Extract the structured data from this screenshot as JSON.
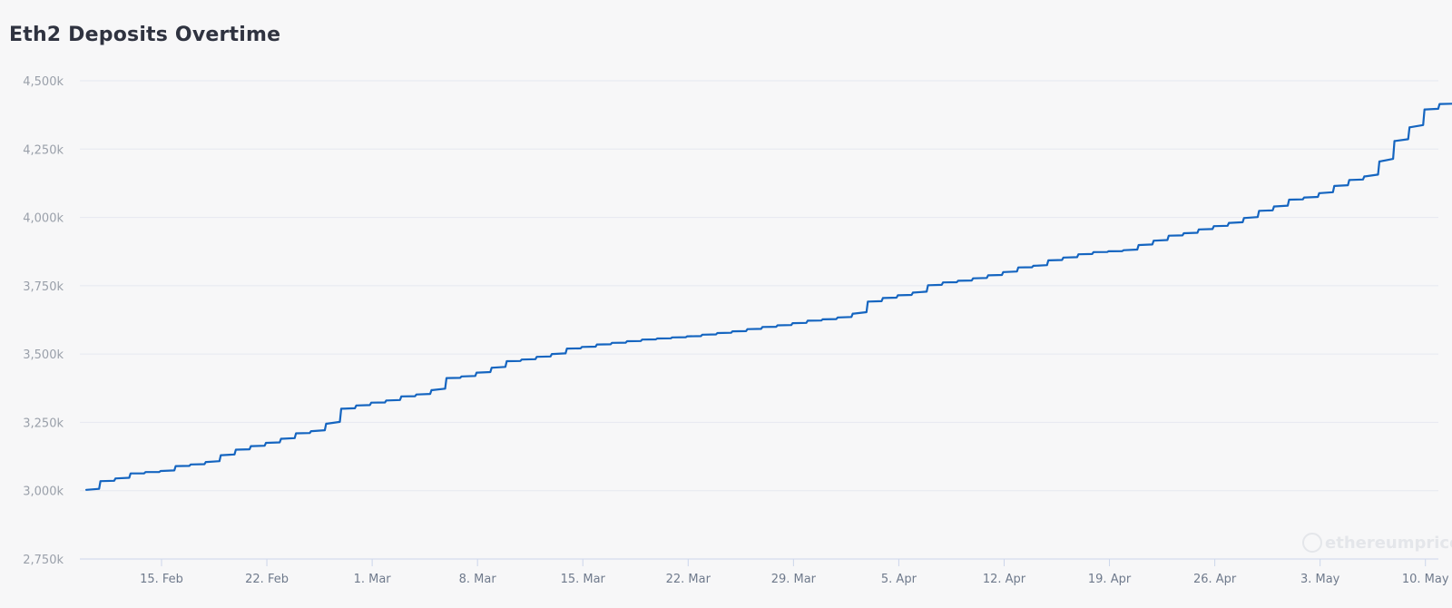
{
  "chart_data": {
    "type": "line",
    "title": "Eth2 Deposits Overtime",
    "xlabel": "",
    "ylabel": "",
    "ylim": [
      2750,
      4500
    ],
    "grid": true,
    "legend": "none",
    "watermark": "ethereumprice",
    "colors": {
      "line": "#1565c0",
      "grid": "#e6e8f0",
      "axis": "#ccd6eb",
      "background": "#f7f7f8"
    },
    "y_ticks": [
      {
        "value": 2750,
        "label": "2,750k"
      },
      {
        "value": 3000,
        "label": "3,000k"
      },
      {
        "value": 3250,
        "label": "3,250k"
      },
      {
        "value": 3500,
        "label": "3,500k"
      },
      {
        "value": 3750,
        "label": "3,750k"
      },
      {
        "value": 4000,
        "label": "4,000k"
      },
      {
        "value": 4250,
        "label": "4,250k"
      },
      {
        "value": 4500,
        "label": "4,500k"
      }
    ],
    "x_ticks": [
      {
        "date": "2021-02-15",
        "label": "15. Feb"
      },
      {
        "date": "2021-02-22",
        "label": "22. Feb"
      },
      {
        "date": "2021-03-01",
        "label": "1. Mar"
      },
      {
        "date": "2021-03-08",
        "label": "8. Mar"
      },
      {
        "date": "2021-03-15",
        "label": "15. Mar"
      },
      {
        "date": "2021-03-22",
        "label": "22. Mar"
      },
      {
        "date": "2021-03-29",
        "label": "29. Mar"
      },
      {
        "date": "2021-04-05",
        "label": "5. Apr"
      },
      {
        "date": "2021-04-12",
        "label": "12. Apr"
      },
      {
        "date": "2021-04-19",
        "label": "19. Apr"
      },
      {
        "date": "2021-04-26",
        "label": "26. Apr"
      },
      {
        "date": "2021-05-03",
        "label": "3. May"
      },
      {
        "date": "2021-05-10",
        "label": "10. May"
      }
    ],
    "series": [
      {
        "x": [
          "2021-02-10",
          "2021-02-11",
          "2021-02-12",
          "2021-02-13",
          "2021-02-14",
          "2021-02-15",
          "2021-02-16",
          "2021-02-17",
          "2021-02-18",
          "2021-02-19",
          "2021-02-20",
          "2021-02-21",
          "2021-02-22",
          "2021-02-23",
          "2021-02-24",
          "2021-02-25",
          "2021-02-26",
          "2021-02-27",
          "2021-02-28",
          "2021-03-01",
          "2021-03-02",
          "2021-03-03",
          "2021-03-04",
          "2021-03-05",
          "2021-03-06",
          "2021-03-07",
          "2021-03-08",
          "2021-03-09",
          "2021-03-10",
          "2021-03-11",
          "2021-03-12",
          "2021-03-13",
          "2021-03-14",
          "2021-03-15",
          "2021-03-16",
          "2021-03-17",
          "2021-03-18",
          "2021-03-19",
          "2021-03-20",
          "2021-03-21",
          "2021-03-22",
          "2021-03-23",
          "2021-03-24",
          "2021-03-25",
          "2021-03-26",
          "2021-03-27",
          "2021-03-28",
          "2021-03-29",
          "2021-03-30",
          "2021-03-31",
          "2021-04-01",
          "2021-04-02",
          "2021-04-03",
          "2021-04-04",
          "2021-04-05",
          "2021-04-06",
          "2021-04-07",
          "2021-04-08",
          "2021-04-09",
          "2021-04-10",
          "2021-04-11",
          "2021-04-12",
          "2021-04-13",
          "2021-04-14",
          "2021-04-15",
          "2021-04-16",
          "2021-04-17",
          "2021-04-18",
          "2021-04-19",
          "2021-04-20",
          "2021-04-21",
          "2021-04-22",
          "2021-04-23",
          "2021-04-24",
          "2021-04-25",
          "2021-04-26",
          "2021-04-27",
          "2021-04-28",
          "2021-04-29",
          "2021-04-30",
          "2021-05-01",
          "2021-05-02",
          "2021-05-03",
          "2021-05-04",
          "2021-05-05",
          "2021-05-06",
          "2021-05-07",
          "2021-05-08",
          "2021-05-09",
          "2021-05-10",
          "2021-05-11"
        ],
        "values": [
          3003,
          3035,
          3045,
          3063,
          3068,
          3072,
          3090,
          3096,
          3105,
          3130,
          3150,
          3163,
          3175,
          3190,
          3210,
          3218,
          3245,
          3300,
          3312,
          3322,
          3330,
          3345,
          3352,
          3368,
          3412,
          3418,
          3432,
          3450,
          3474,
          3480,
          3490,
          3500,
          3520,
          3526,
          3535,
          3541,
          3547,
          3553,
          3557,
          3561,
          3565,
          3571,
          3577,
          3583,
          3591,
          3599,
          3605,
          3613,
          3622,
          3627,
          3634,
          3648,
          3692,
          3705,
          3715,
          3725,
          3752,
          3762,
          3768,
          3777,
          3788,
          3800,
          3817,
          3823,
          3843,
          3853,
          3865,
          3873,
          3876,
          3880,
          3899,
          3915,
          3933,
          3942,
          3956,
          3968,
          3980,
          3998,
          4024,
          4040,
          4065,
          4073,
          4089,
          4115,
          4137,
          4150,
          4205,
          4280,
          4330,
          4395,
          4415
        ]
      }
    ],
    "last_point": {
      "x": "2021-05-12",
      "value": 4422
    }
  }
}
